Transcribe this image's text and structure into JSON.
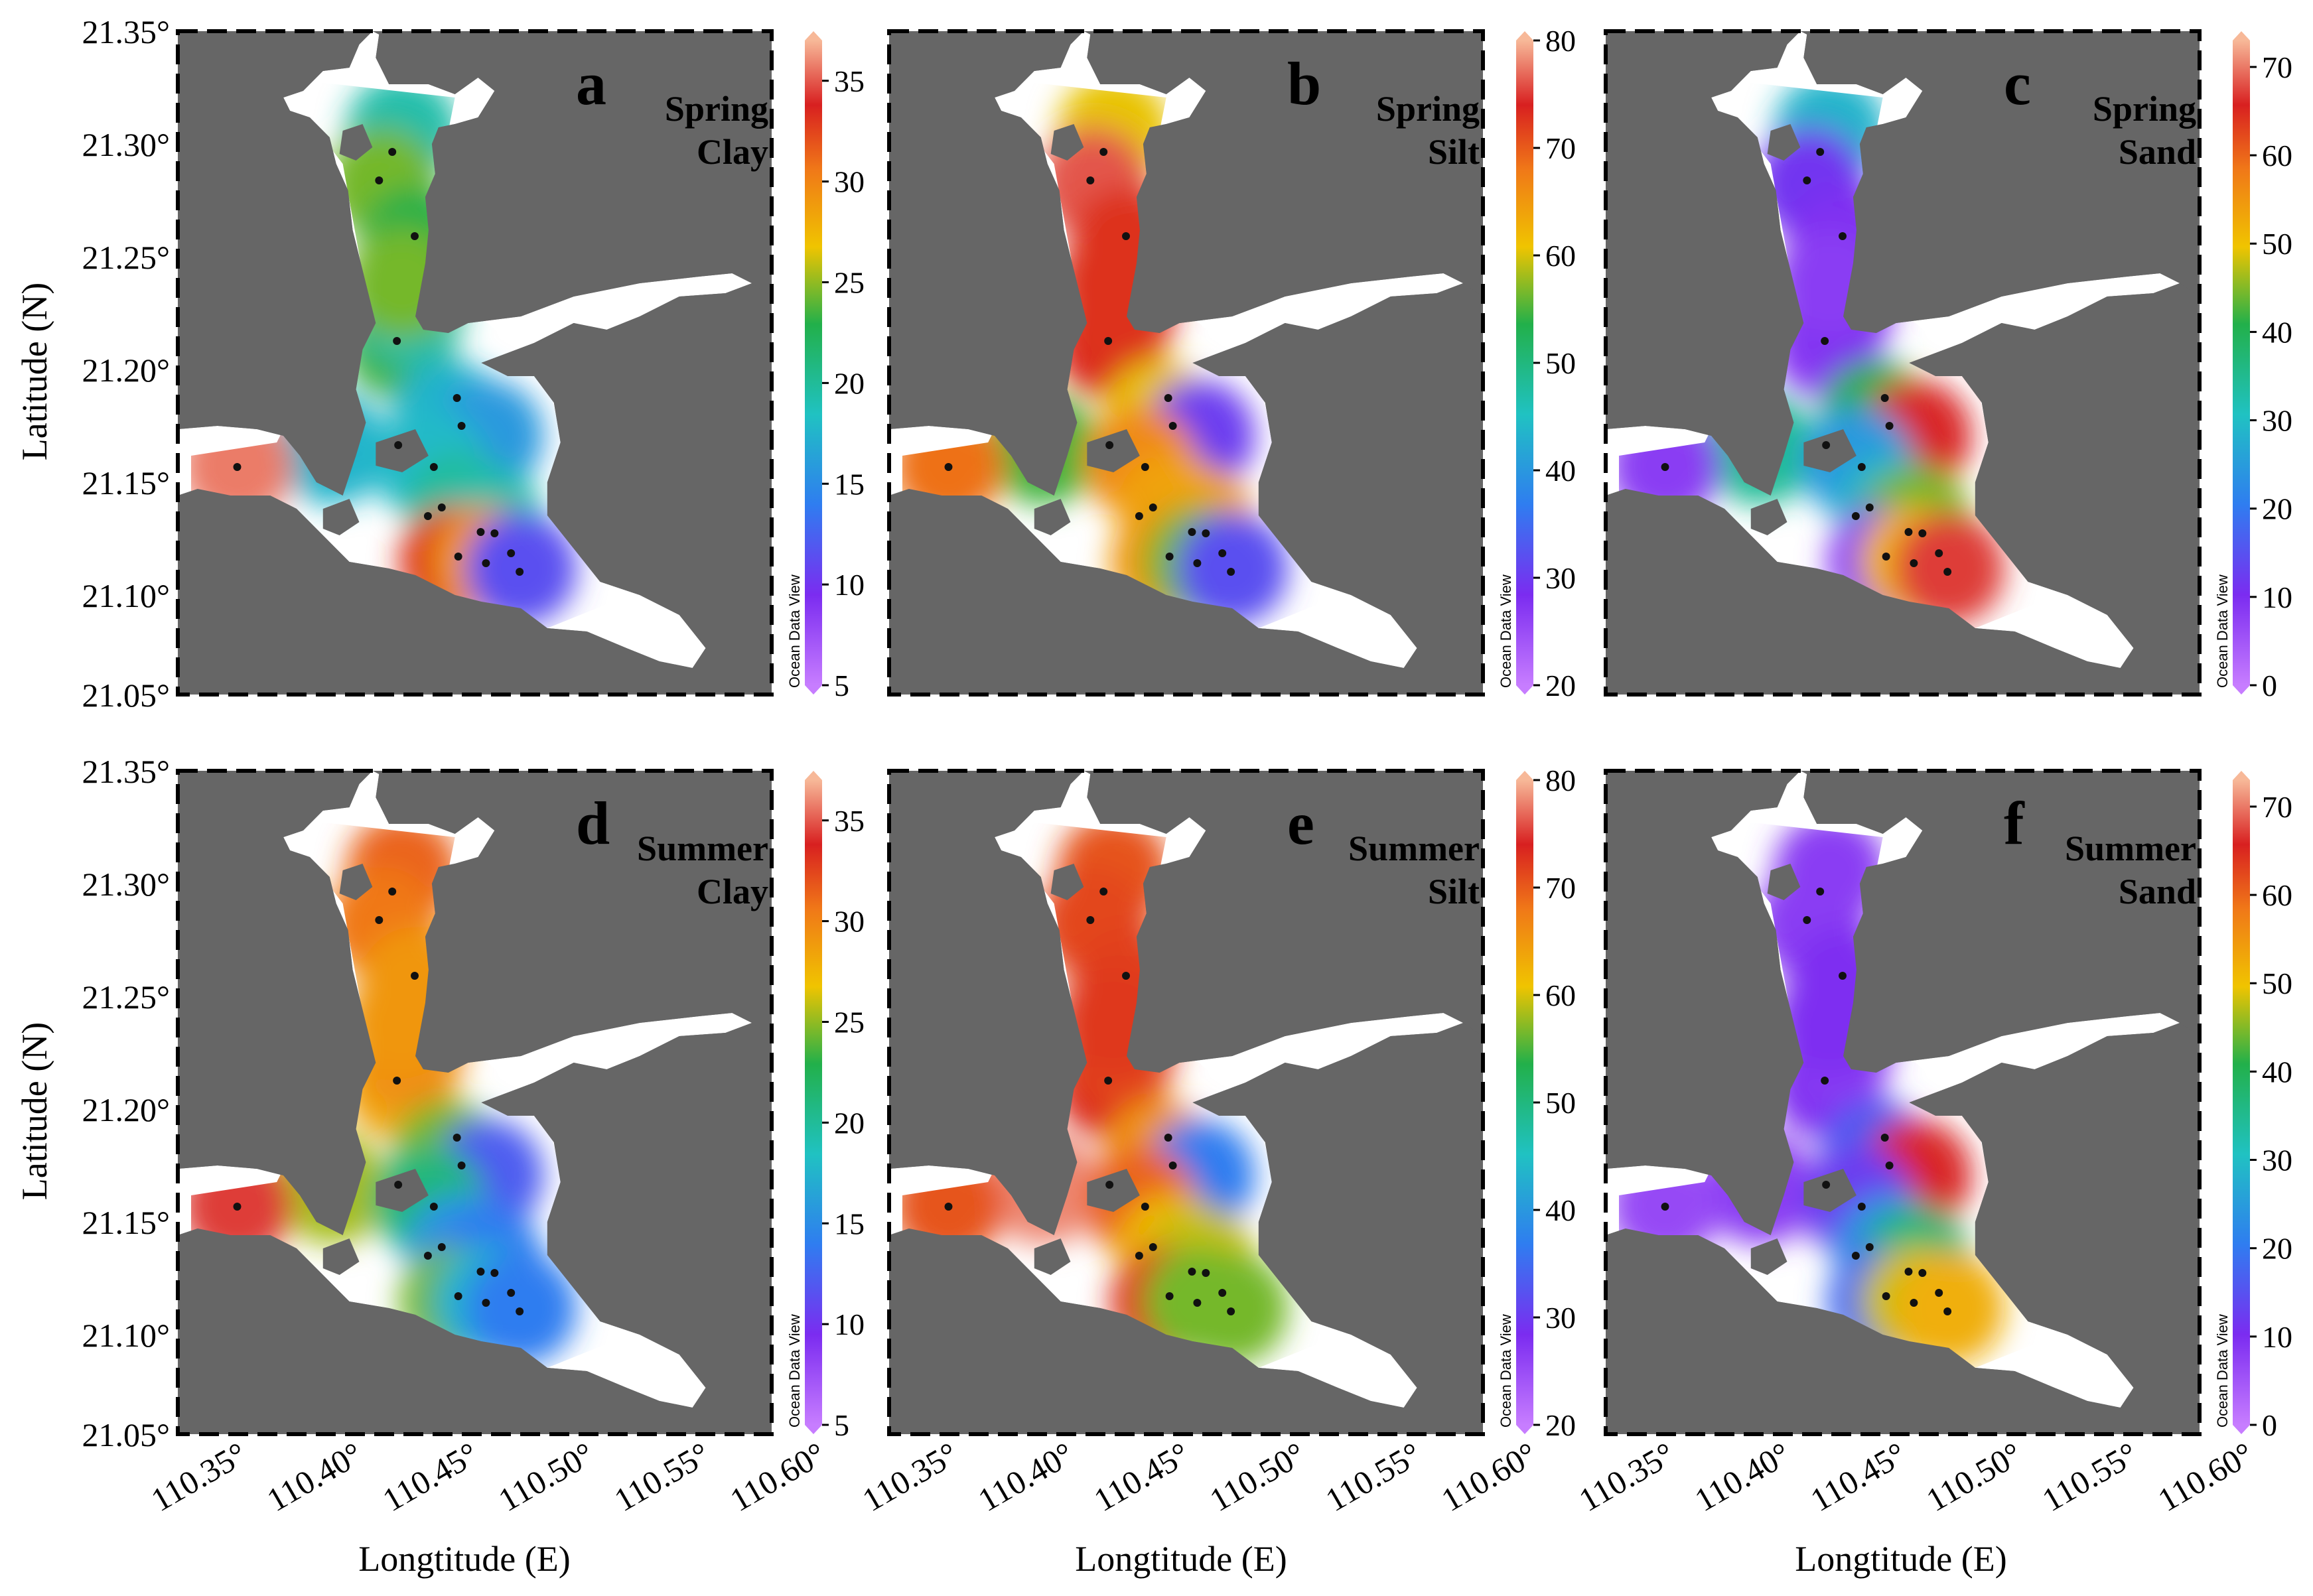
{
  "figure": {
    "x_axis_label": "Longtitude (E)",
    "y_axis_label": "Latitude (N)",
    "x_ticks": [
      "110.35°",
      "110.40°",
      "110.45°",
      "110.50°",
      "110.55°",
      "110.60°"
    ],
    "y_ticks": [
      "21.35°",
      "21.30°",
      "21.25°",
      "21.20°",
      "21.15°",
      "21.10°",
      "21.05°"
    ],
    "watermark": "Ocean Data View",
    "colors": {
      "land": "#666666",
      "water": "#ffffff",
      "station": "#111111",
      "frame": "#000000"
    }
  },
  "chart_data": [
    {
      "type": "heatmap",
      "panel": "a",
      "season": "Spring",
      "variable": "Clay",
      "colorbar_ticks": [
        "35",
        "30",
        "25",
        "20",
        "15",
        "10",
        "5"
      ],
      "colorbar_range": [
        5,
        37
      ]
    },
    {
      "type": "heatmap",
      "panel": "b",
      "season": "Spring",
      "variable": "Silt",
      "colorbar_ticks": [
        "80",
        "70",
        "60",
        "50",
        "40",
        "30",
        "20"
      ],
      "colorbar_range": [
        20,
        80
      ]
    },
    {
      "type": "heatmap",
      "panel": "c",
      "season": "Spring",
      "variable": "Sand",
      "colorbar_ticks": [
        "70",
        "60",
        "50",
        "40",
        "30",
        "20",
        "10",
        "0"
      ],
      "colorbar_range": [
        0,
        73
      ]
    },
    {
      "type": "heatmap",
      "panel": "d",
      "season": "Summer",
      "variable": "Clay",
      "colorbar_ticks": [
        "35",
        "30",
        "25",
        "20",
        "15",
        "10",
        "5"
      ],
      "colorbar_range": [
        5,
        37
      ]
    },
    {
      "type": "heatmap",
      "panel": "e",
      "season": "Summer",
      "variable": "Silt",
      "colorbar_ticks": [
        "80",
        "70",
        "60",
        "50",
        "40",
        "30",
        "20"
      ],
      "colorbar_range": [
        20,
        80
      ]
    },
    {
      "type": "heatmap",
      "panel": "f",
      "season": "Summer",
      "variable": "Sand",
      "colorbar_ticks": [
        "70",
        "60",
        "50",
        "40",
        "30",
        "20",
        "10",
        "0"
      ],
      "colorbar_range": [
        0,
        73
      ]
    }
  ]
}
